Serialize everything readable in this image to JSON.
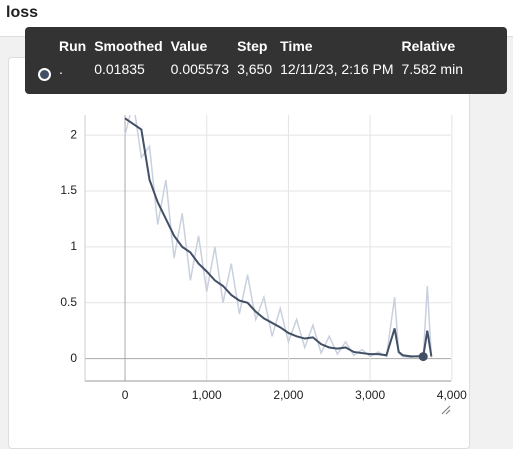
{
  "header": {
    "title": "loss"
  },
  "tooltip": {
    "columns": [
      "Run",
      "Smoothed",
      "Value",
      "Step",
      "Time",
      "Relative"
    ],
    "row": [
      ".",
      "0.01835",
      "0.005573",
      "3,650",
      "12/11/23, 2:16 PM",
      "7.582 min"
    ]
  },
  "chart_data": {
    "type": "line",
    "x": [
      0,
      100,
      200,
      300,
      400,
      500,
      600,
      700,
      800,
      900,
      1000,
      1100,
      1200,
      1300,
      1400,
      1500,
      1600,
      1700,
      1800,
      1900,
      2000,
      2100,
      2200,
      2300,
      2400,
      2500,
      2600,
      2700,
      2800,
      2900,
      3000,
      3100,
      3200,
      3300,
      3350,
      3400,
      3500,
      3600,
      3650,
      3700,
      3750
    ],
    "series": [
      {
        "name": "Value",
        "color": "#c9d0de",
        "values": [
          2.0,
          2.3,
          1.8,
          1.9,
          1.2,
          1.6,
          0.9,
          1.3,
          0.7,
          1.1,
          0.6,
          1.0,
          0.5,
          0.85,
          0.4,
          0.75,
          0.35,
          0.55,
          0.2,
          0.45,
          0.15,
          0.35,
          0.1,
          0.3,
          0.05,
          0.2,
          0.04,
          0.15,
          0.03,
          0.08,
          0.02,
          0.06,
          0.02,
          0.55,
          0.05,
          0.02,
          0.01,
          0.03,
          0.005573,
          0.65,
          0.01
        ]
      },
      {
        "name": "Smoothed",
        "color": "#425066",
        "values": [
          2.15,
          2.1,
          2.05,
          1.6,
          1.4,
          1.25,
          1.1,
          1.0,
          0.95,
          0.85,
          0.78,
          0.7,
          0.65,
          0.57,
          0.52,
          0.5,
          0.42,
          0.36,
          0.32,
          0.28,
          0.23,
          0.2,
          0.18,
          0.19,
          0.13,
          0.1,
          0.09,
          0.1,
          0.06,
          0.05,
          0.04,
          0.04,
          0.03,
          0.27,
          0.06,
          0.03,
          0.02,
          0.02,
          0.01835,
          0.25,
          0.02
        ]
      }
    ],
    "xlim": [
      -490,
      3990
    ],
    "ylim": [
      -0.2,
      2.18
    ],
    "xticks": [
      0,
      {
        "value": 1000,
        "label": "1,000"
      },
      {
        "value": 2000,
        "label": "2,000"
      },
      {
        "value": 3000,
        "label": "3,000"
      },
      {
        "value": 4000,
        "label": "4,000"
      }
    ],
    "yticks": [
      0,
      0.5,
      1,
      1.5,
      2
    ],
    "grid": true
  }
}
